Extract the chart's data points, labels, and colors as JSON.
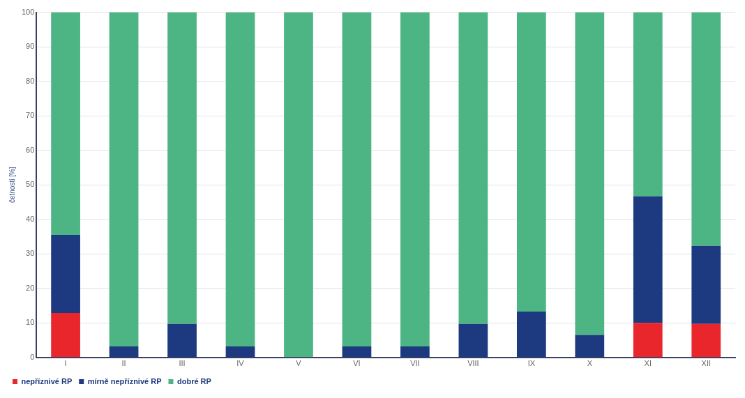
{
  "chart_data": {
    "type": "bar",
    "stacked": true,
    "ylabel": "četnosti [%]",
    "categories": [
      "I",
      "II",
      "III",
      "IV",
      "V",
      "VI",
      "VII",
      "VIII",
      "IX",
      "X",
      "XI",
      "XII"
    ],
    "series": [
      {
        "name": "nepříznivé RP",
        "color": "#e8262b",
        "values": [
          12.9,
          0,
          0,
          0,
          0,
          0,
          0,
          0,
          0,
          0,
          10,
          9.7
        ]
      },
      {
        "name": "mírně nepříznivé RP",
        "color": "#1d3a80",
        "values": [
          22.6,
          3.2,
          9.7,
          3.2,
          0,
          3.2,
          3.2,
          9.7,
          13.3,
          6.5,
          36.7,
          22.6
        ]
      },
      {
        "name": "dobré RP",
        "color": "#4db584",
        "values": [
          64.5,
          96.8,
          90.3,
          96.8,
          100,
          96.8,
          96.8,
          90.3,
          86.7,
          93.5,
          53.3,
          67.7
        ]
      }
    ],
    "ylim": [
      0,
      100
    ],
    "yticks": [
      0,
      10,
      20,
      30,
      40,
      50,
      60,
      70,
      80,
      90,
      100
    ],
    "grid": "y",
    "legend": "bottom left"
  }
}
